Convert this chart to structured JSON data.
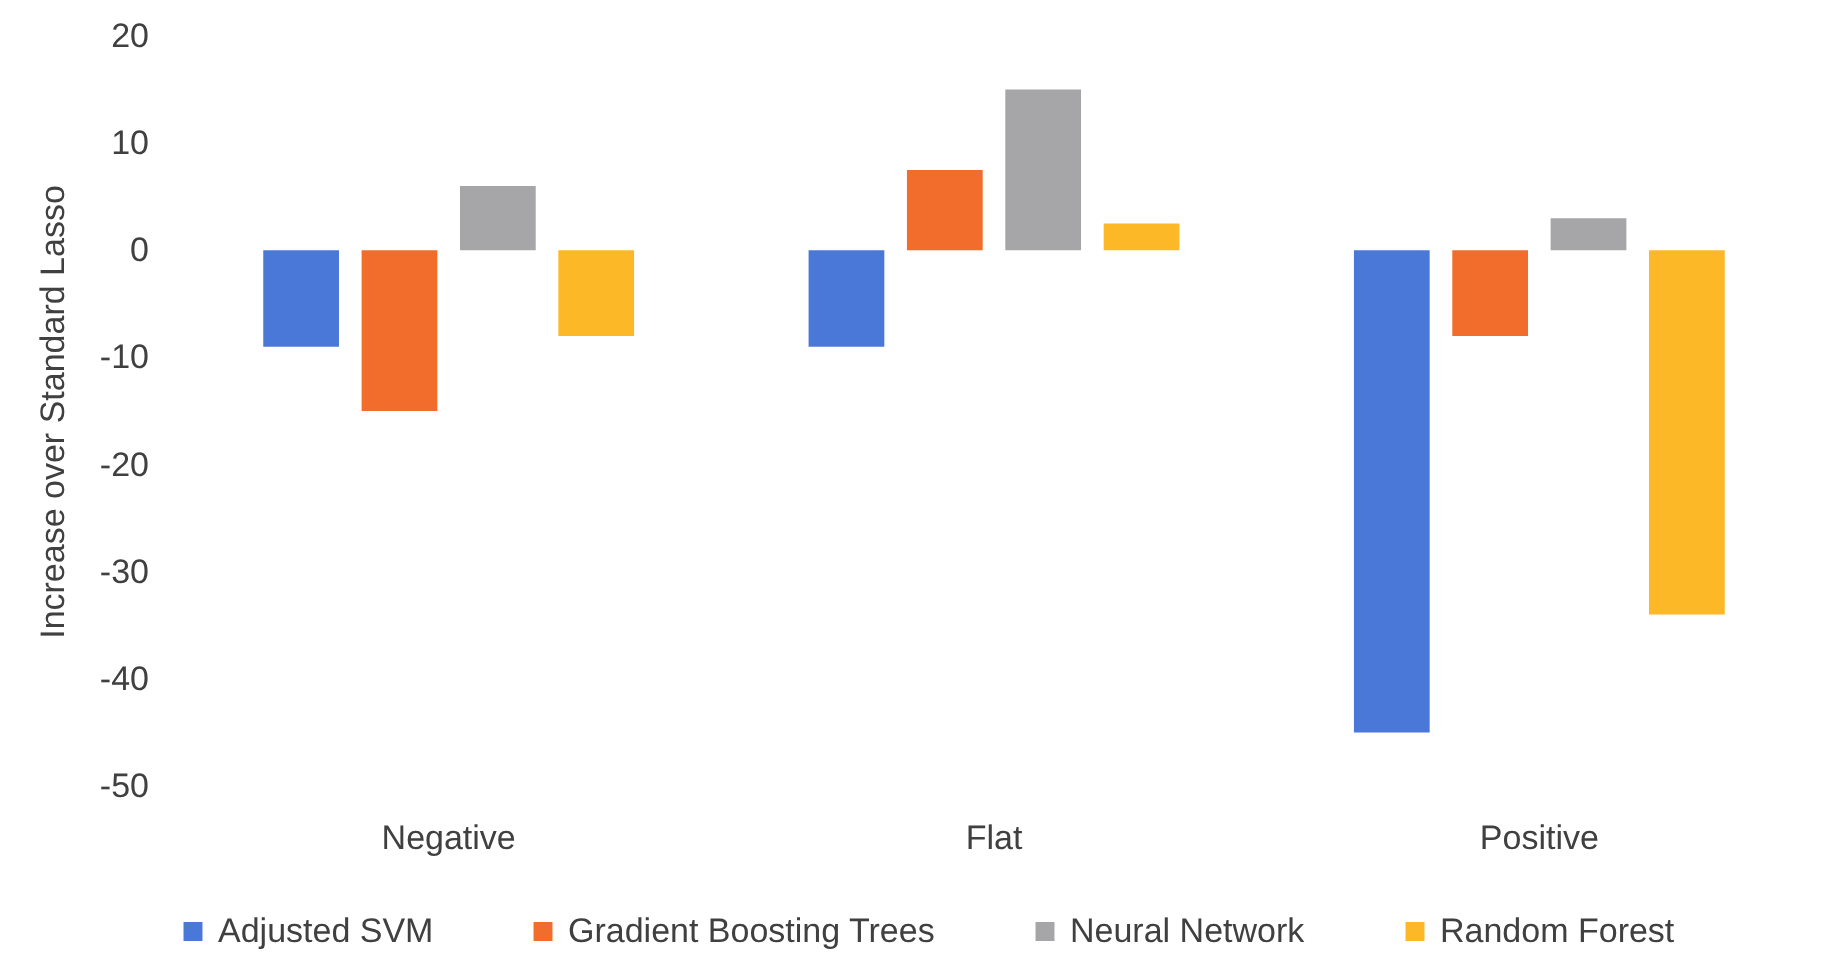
{
  "chart_data": {
    "type": "bar",
    "ylabel": "Increase over Standard Lasso",
    "categories": [
      "Negative",
      "Flat",
      "Positive"
    ],
    "series": [
      {
        "name": "Adjusted SVM",
        "color": "#4a78d8",
        "values": [
          -9,
          -9,
          -45
        ]
      },
      {
        "name": "Gradient Boosting Trees",
        "color": "#f26d2b",
        "values": [
          -15,
          7.5,
          -8
        ]
      },
      {
        "name": "Neural Network",
        "color": "#a6a6a8",
        "values": [
          6,
          15,
          3
        ]
      },
      {
        "name": "Random Forest",
        "color": "#fdb827",
        "values": [
          -8,
          2.5,
          -34
        ]
      }
    ],
    "ylim": [
      -50,
      20
    ],
    "yticks": [
      -50,
      -40,
      -30,
      -20,
      -10,
      0,
      10,
      20
    ],
    "grid": false,
    "legend": "bottom"
  }
}
